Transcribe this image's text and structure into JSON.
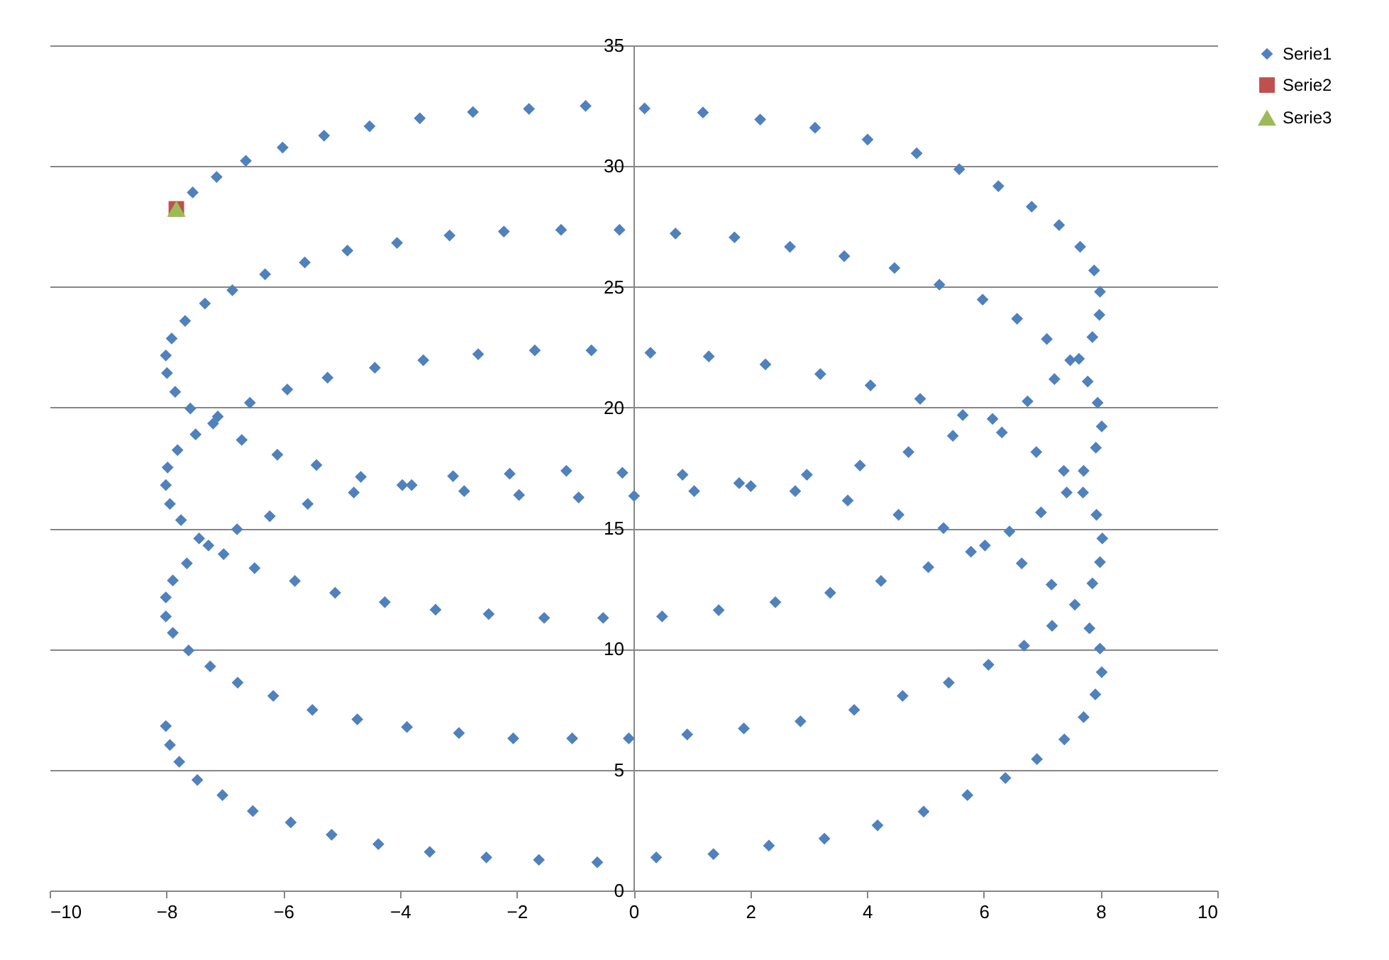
{
  "chart_data": {
    "type": "scatter",
    "xlim": [
      -10,
      10
    ],
    "xticks": [
      -10,
      -8,
      -6,
      -4,
      -2,
      0,
      2,
      4,
      6,
      8,
      10
    ],
    "ylim": [
      0,
      35
    ],
    "yticks": [
      0,
      5,
      10,
      15,
      20,
      25,
      30,
      35
    ],
    "grid": "y",
    "legend": "right",
    "series": [
      {
        "name": "Serie1",
        "color": "#4f81bd",
        "marker": "diamond",
        "x": [
          -2.75,
          -3.66,
          -4.52,
          -5.3,
          -6.01,
          -6.64,
          -7.14,
          -7.55,
          -3.15,
          -4.05,
          -4.9,
          -5.63,
          -6.31,
          -6.87,
          -7.34,
          -7.68,
          -7.91,
          -8.01,
          -7.99,
          -7.85,
          -7.59,
          -7.12,
          -7.2,
          -7.5,
          -7.81,
          -7.98,
          -2.66,
          -3.6,
          -4.43,
          -5.24,
          -5.93,
          -6.57,
          -6.71,
          -6.1,
          -5.43,
          -4.67,
          -3.09,
          -1.79,
          -0.82,
          0.19,
          1.19,
          2.17,
          3.11,
          -2.22,
          -1.24,
          -0.24,
          0.72,
          1.73,
          2.68,
          -1.69,
          -0.72,
          0.29,
          1.29,
          2.26,
          3.2,
          -2.12,
          -1.15,
          -0.19,
          0.84,
          2.97,
          4.01,
          4.85,
          5.58,
          6.25,
          6.82,
          7.29,
          7.65,
          7.89,
          7.99,
          7.98,
          7.86,
          7.63,
          7.48,
          7.78,
          7.95,
          8.02,
          7.92,
          7.71,
          7.37,
          3.61,
          4.47,
          5.24,
          5.98,
          6.57,
          7.08,
          7.21,
          6.75,
          4.06,
          4.91,
          5.64,
          6.15,
          6.31,
          5.47,
          4.71,
          3.88,
          6.9,
          -8.01,
          -3.96,
          -3.8,
          -2.9,
          -4.79,
          -7.94,
          -7.75,
          -7.44,
          -7.28,
          -6.79,
          -6.23,
          -5.58,
          -7.02,
          -7.65,
          -7.89,
          -8.01,
          -8.01,
          -7.89,
          -7.62,
          -7.25,
          -6.78,
          -6.17,
          -5.5,
          -4.73,
          -3.88,
          -2.99,
          -6.49,
          -5.8,
          -5.11,
          -4.26,
          -3.39,
          -8.01,
          -7.94,
          -7.78,
          -7.47,
          -7.04,
          -6.52,
          -5.87,
          -5.17,
          -4.37,
          -3.49,
          -1.96,
          -0.94,
          0.01,
          1.04,
          1.81,
          2.01,
          2.77,
          -2.48,
          -1.53,
          -0.52,
          0.49,
          1.46,
          2.43,
          3.37,
          -2.06,
          -1.05,
          -0.08,
          0.92,
          1.89,
          2.86,
          -2.52,
          -1.62,
          -0.62,
          0.39,
          1.37,
          2.32,
          3.27,
          3.67,
          4.54,
          5.31,
          5.78,
          6.02,
          6.44,
          6.98,
          7.42,
          7.7,
          7.93,
          8.03,
          7.99,
          7.86,
          7.56,
          7.17,
          6.65,
          7.16,
          5.05,
          4.24,
          7.81,
          7.99,
          8.02,
          7.91,
          7.71,
          7.38,
          6.91,
          6.37,
          5.72,
          4.97,
          4.18,
          6.69,
          6.08,
          5.4,
          4.61,
          3.78
        ],
        "values": [
          32.24,
          31.98,
          31.65,
          31.26,
          30.77,
          30.22,
          29.55,
          28.91,
          27.13,
          26.82,
          26.5,
          26.01,
          25.52,
          24.86,
          24.31,
          23.59,
          22.86,
          22.16,
          21.43,
          20.65,
          19.96,
          19.63,
          19.34,
          18.89,
          18.24,
          17.52,
          22.21,
          21.96,
          21.65,
          21.24,
          20.75,
          20.2,
          18.66,
          18.05,
          17.62,
          17.13,
          17.16,
          32.37,
          32.49,
          32.39,
          32.22,
          31.93,
          31.59,
          27.29,
          27.36,
          27.36,
          27.21,
          27.05,
          26.66,
          22.37,
          22.37,
          22.27,
          22.12,
          21.79,
          21.39,
          17.26,
          17.38,
          17.3,
          17.22,
          17.22,
          31.1,
          30.53,
          29.87,
          29.17,
          28.32,
          27.56,
          26.66,
          25.68,
          24.8,
          23.84,
          22.92,
          22.02,
          21.96,
          21.08,
          20.2,
          19.22,
          18.34,
          17.38,
          17.38,
          26.27,
          25.78,
          25.09,
          24.47,
          23.68,
          22.84,
          21.18,
          20.26,
          20.92,
          20.36,
          19.69,
          19.53,
          18.97,
          18.83,
          18.16,
          17.6,
          18.16,
          16.79,
          16.79,
          16.79,
          16.54,
          16.48,
          16.01,
          15.34,
          14.58,
          14.29,
          14.96,
          15.5,
          16.01,
          13.93,
          13.55,
          12.84,
          12.14,
          11.35,
          10.67,
          9.94,
          9.28,
          8.61,
          8.06,
          7.48,
          7.09,
          6.77,
          6.52,
          13.35,
          12.82,
          12.33,
          11.94,
          11.63,
          6.81,
          6.03,
          5.33,
          4.58,
          3.95,
          3.29,
          2.82,
          2.31,
          1.92,
          1.6,
          16.38,
          16.28,
          16.34,
          16.54,
          16.87,
          16.75,
          16.54,
          11.45,
          11.29,
          11.29,
          11.35,
          11.61,
          11.94,
          12.33,
          6.3,
          6.3,
          6.3,
          6.46,
          6.71,
          7.01,
          1.37,
          1.27,
          1.17,
          1.37,
          1.51,
          1.86,
          2.15,
          16.15,
          15.56,
          15.01,
          14.03,
          14.29,
          14.87,
          15.66,
          16.48,
          16.48,
          15.56,
          14.58,
          13.6,
          12.72,
          11.84,
          10.96,
          13.55,
          12.67,
          13.39,
          12.82,
          10.86,
          10.02,
          9.04,
          8.12,
          7.18,
          6.26,
          5.44,
          4.66,
          3.95,
          3.27,
          2.7,
          10.14,
          9.35,
          8.61,
          8.06,
          7.48
        ]
      },
      {
        "name": "Serie2",
        "color": "#c0504d",
        "marker": "square",
        "x": [
          -7.83
        ],
        "values": [
          28.23
        ]
      },
      {
        "name": "Serie3",
        "color": "#9bbb59",
        "marker": "triangle",
        "x": [
          -7.83
        ],
        "values": [
          28.23
        ]
      }
    ]
  }
}
